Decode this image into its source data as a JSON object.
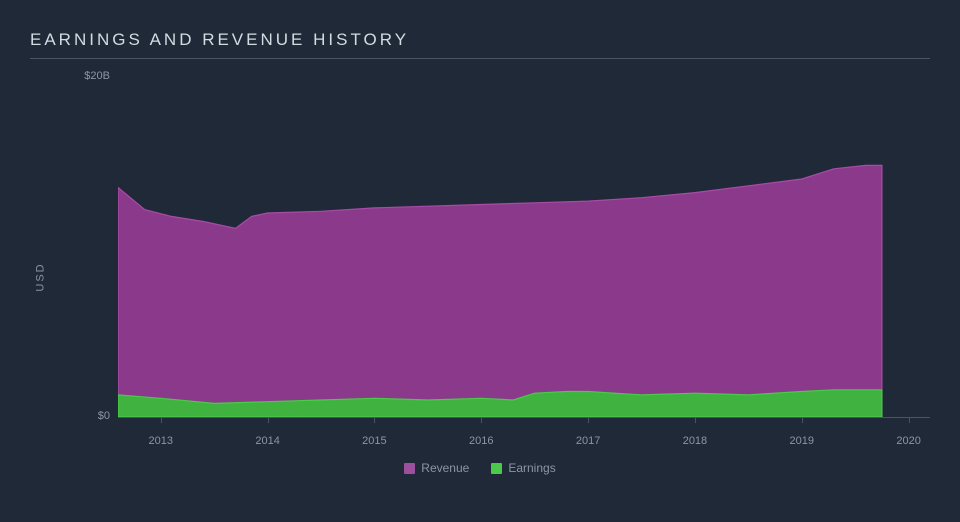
{
  "chart": {
    "type": "area",
    "title": "EARNINGS AND REVENUE HISTORY",
    "background_color": "#1f2937",
    "title_color": "#d4dae1",
    "title_fontsize": 17,
    "title_letter_spacing": 3,
    "axis_line_color": "#4a5564",
    "tick_label_color": "#8b96a5",
    "tick_fontsize": 11,
    "ylabel": "USD",
    "yticks": [
      {
        "value": 0,
        "label": "$0"
      },
      {
        "value": 20,
        "label": "$20B"
      }
    ],
    "ylim": [
      0,
      20
    ],
    "xticks": [
      "2013",
      "2014",
      "2015",
      "2016",
      "2017",
      "2018",
      "2019",
      "2020"
    ],
    "xlim": [
      2012.6,
      2020.2
    ],
    "series": [
      {
        "name": "Revenue",
        "fill_color": "#8b3a8b",
        "stroke_color": "#a64ca6",
        "swatch_color": "#9c4f9c",
        "data": [
          {
            "x": 2012.6,
            "y": 13.5
          },
          {
            "x": 2012.85,
            "y": 12.2
          },
          {
            "x": 2013.1,
            "y": 11.8
          },
          {
            "x": 2013.4,
            "y": 11.5
          },
          {
            "x": 2013.7,
            "y": 11.1
          },
          {
            "x": 2013.85,
            "y": 11.8
          },
          {
            "x": 2014.0,
            "y": 12.0
          },
          {
            "x": 2014.5,
            "y": 12.1
          },
          {
            "x": 2015.0,
            "y": 12.3
          },
          {
            "x": 2015.5,
            "y": 12.4
          },
          {
            "x": 2016.0,
            "y": 12.5
          },
          {
            "x": 2016.5,
            "y": 12.6
          },
          {
            "x": 2017.0,
            "y": 12.7
          },
          {
            "x": 2017.5,
            "y": 12.9
          },
          {
            "x": 2018.0,
            "y": 13.2
          },
          {
            "x": 2018.5,
            "y": 13.6
          },
          {
            "x": 2019.0,
            "y": 14.0
          },
          {
            "x": 2019.3,
            "y": 14.6
          },
          {
            "x": 2019.6,
            "y": 14.8
          },
          {
            "x": 2019.75,
            "y": 14.8
          }
        ]
      },
      {
        "name": "Earnings",
        "fill_color": "#3fb23f",
        "stroke_color": "#4bc94b",
        "swatch_color": "#4bc94b",
        "data": [
          {
            "x": 2012.6,
            "y": 1.3
          },
          {
            "x": 2013.0,
            "y": 1.1
          },
          {
            "x": 2013.5,
            "y": 0.8
          },
          {
            "x": 2014.0,
            "y": 0.9
          },
          {
            "x": 2014.5,
            "y": 1.0
          },
          {
            "x": 2015.0,
            "y": 1.1
          },
          {
            "x": 2015.5,
            "y": 1.0
          },
          {
            "x": 2016.0,
            "y": 1.1
          },
          {
            "x": 2016.3,
            "y": 1.0
          },
          {
            "x": 2016.5,
            "y": 1.4
          },
          {
            "x": 2016.8,
            "y": 1.5
          },
          {
            "x": 2017.0,
            "y": 1.5
          },
          {
            "x": 2017.5,
            "y": 1.3
          },
          {
            "x": 2018.0,
            "y": 1.4
          },
          {
            "x": 2018.5,
            "y": 1.3
          },
          {
            "x": 2019.0,
            "y": 1.5
          },
          {
            "x": 2019.3,
            "y": 1.6
          },
          {
            "x": 2019.6,
            "y": 1.6
          },
          {
            "x": 2019.75,
            "y": 1.6
          }
        ]
      }
    ],
    "legend_position": "bottom-center"
  }
}
